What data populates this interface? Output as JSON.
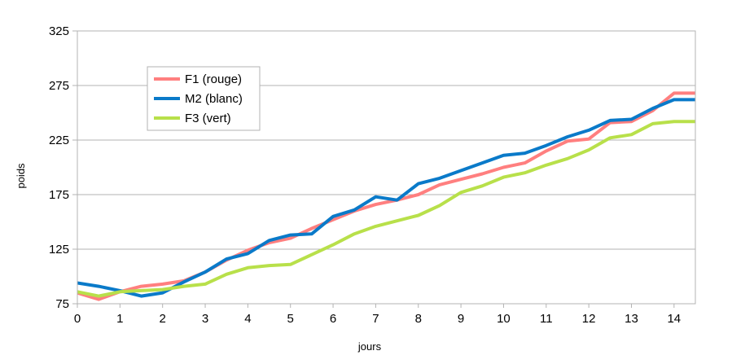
{
  "chart_data": {
    "type": "line",
    "title": "",
    "xlabel": "jours",
    "ylabel": "poids",
    "xlim": [
      0,
      14.5
    ],
    "ylim": [
      75,
      325
    ],
    "x_ticks": [
      0,
      1,
      2,
      3,
      4,
      5,
      6,
      7,
      8,
      9,
      10,
      11,
      12,
      13,
      14
    ],
    "y_ticks": [
      75,
      125,
      175,
      225,
      275,
      325
    ],
    "grid": "horizontal",
    "legend_position": "top-left",
    "series": [
      {
        "name": "F1 (rouge)",
        "color": "#ff7f7f",
        "x": [
          0,
          0.5,
          1,
          1.5,
          2,
          2.5,
          3,
          3.5,
          4,
          4.5,
          5,
          5.5,
          6,
          6.5,
          7,
          7.5,
          8,
          8.5,
          9,
          9.5,
          10,
          10.5,
          11,
          11.5,
          12,
          12.5,
          13,
          13.5,
          14,
          14.5
        ],
        "y": [
          85,
          79,
          86,
          91,
          93,
          96,
          104,
          115,
          124,
          131,
          135,
          144,
          152,
          160,
          166,
          170,
          175,
          184,
          189,
          194,
          200,
          204,
          215,
          224,
          226,
          241,
          242,
          252,
          268,
          268
        ]
      },
      {
        "name": "M2 (blanc)",
        "color": "#0a7ac9",
        "x": [
          0,
          0.5,
          1,
          1.5,
          2,
          2.5,
          3,
          3.5,
          4,
          4.5,
          5,
          5.5,
          6,
          6.5,
          7,
          7.5,
          8,
          8.5,
          9,
          9.5,
          10,
          10.5,
          11,
          11.5,
          12,
          12.5,
          13,
          13.5,
          14,
          14.5
        ],
        "y": [
          94,
          91,
          87,
          82,
          85,
          95,
          104,
          116,
          121,
          133,
          138,
          139,
          155,
          161,
          173,
          170,
          185,
          190,
          197,
          204,
          211,
          213,
          220,
          228,
          234,
          243,
          244,
          254,
          262,
          262
        ]
      },
      {
        "name": "F3 (vert)",
        "color": "#b8e04a",
        "x": [
          0,
          0.5,
          1,
          1.5,
          2,
          2.5,
          3,
          3.5,
          4,
          4.5,
          5,
          5.5,
          6,
          6.5,
          7,
          7.5,
          8,
          8.5,
          9,
          9.5,
          10,
          10.5,
          11,
          11.5,
          12,
          12.5,
          13,
          13.5,
          14,
          14.5
        ],
        "y": [
          86,
          82,
          86,
          87,
          88,
          91,
          93,
          102,
          108,
          110,
          111,
          120,
          129,
          139,
          146,
          151,
          156,
          165,
          177,
          183,
          191,
          195,
          202,
          208,
          216,
          227,
          230,
          240,
          242,
          242
        ]
      }
    ]
  }
}
